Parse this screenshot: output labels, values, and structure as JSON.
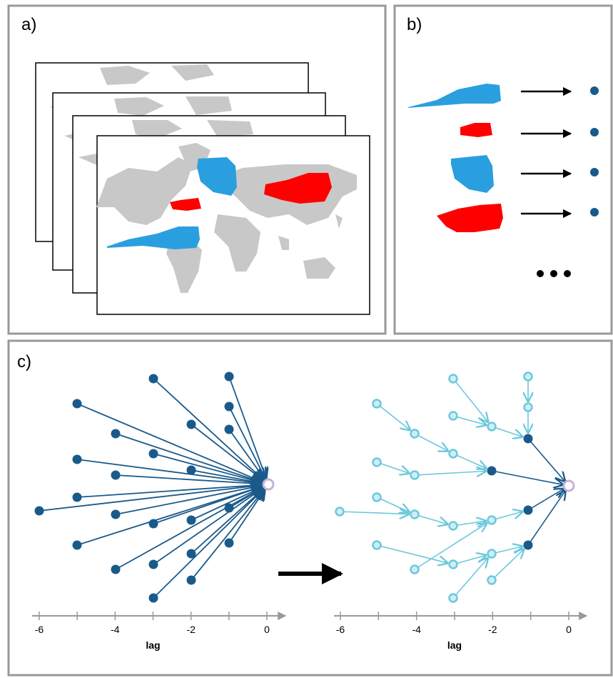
{
  "panels": {
    "a": {
      "label": "a)"
    },
    "b": {
      "label": "b)"
    },
    "c": {
      "label": "c)"
    }
  },
  "axes": [
    {
      "ticks": [
        -6,
        -4,
        -2,
        0
      ],
      "label": "lag"
    },
    {
      "ticks": [
        -6,
        -4,
        -2,
        0
      ],
      "label": "lag"
    }
  ]
}
